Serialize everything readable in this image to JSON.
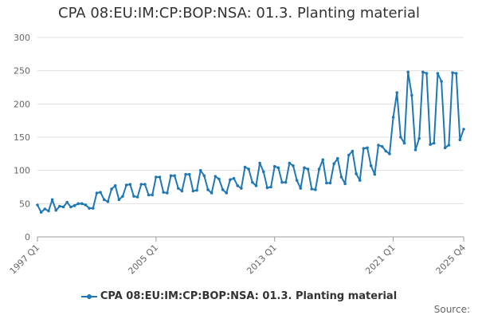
{
  "chart_data": {
    "type": "line",
    "title": "CPA 08:EU:IM:CP:BOP:NSA: 01.3. Planting material",
    "ylim": [
      0,
      300
    ],
    "y_ticks": [
      "0",
      "50",
      "100",
      "150",
      "200",
      "250",
      "300"
    ],
    "y_tick_values": [
      0,
      50,
      100,
      150,
      200,
      250,
      300
    ],
    "x_tick_labels": [
      "1997 Q1",
      "2005 Q1",
      "2013 Q1",
      "2021 Q1",
      "2025 Q4"
    ],
    "x_tick_index": [
      0,
      32,
      64,
      96,
      115
    ],
    "grid": true,
    "legend_position": "bottom",
    "series": [
      {
        "name": "CPA 08:EU:IM:CP:BOP:NSA: 01.3. Planting material",
        "color": "#1f78b4",
        "values": [
          48,
          37,
          42,
          39,
          56,
          40,
          46,
          45,
          52,
          45,
          47,
          50,
          50,
          48,
          43,
          43,
          66,
          67,
          56,
          53,
          72,
          77,
          56,
          61,
          78,
          79,
          61,
          60,
          79,
          79,
          63,
          63,
          90,
          90,
          67,
          66,
          92,
          92,
          73,
          69,
          94,
          94,
          69,
          70,
          100,
          92,
          71,
          66,
          91,
          87,
          71,
          66,
          86,
          88,
          77,
          73,
          105,
          102,
          82,
          77,
          111,
          98,
          74,
          75,
          106,
          104,
          82,
          82,
          111,
          107,
          85,
          73,
          104,
          102,
          72,
          71,
          102,
          116,
          81,
          81,
          110,
          118,
          90,
          80,
          123,
          129,
          95,
          85,
          133,
          134,
          107,
          94,
          138,
          136,
          129,
          125,
          180,
          217,
          150,
          141,
          248,
          213,
          131,
          148,
          248,
          246,
          139,
          141,
          246,
          234,
          134,
          138,
          247,
          246,
          146,
          162
        ]
      }
    ]
  },
  "legend": {
    "label": "CPA 08:EU:IM:CP:BOP:NSA: 01.3. Planting material"
  },
  "source": {
    "label": "Source:"
  }
}
